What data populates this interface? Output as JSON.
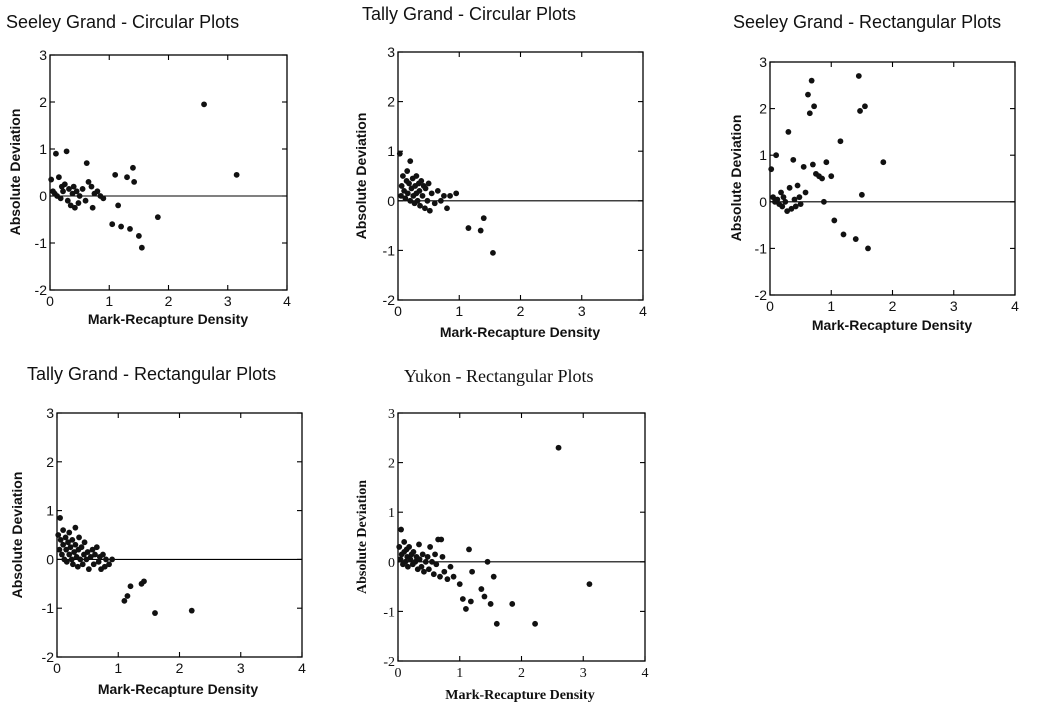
{
  "chart_data": [
    {
      "type": "scatter",
      "title": "Seeley Grand - Circular Plots",
      "xlabel": "Mark-Recapture Density",
      "ylabel": "Absolute Deviation",
      "xlim": [
        0,
        4
      ],
      "ylim": [
        -2,
        3
      ],
      "xticks": [
        "0",
        "1",
        "2",
        "3",
        "4"
      ],
      "yticks": [
        "-2",
        "-1",
        "0",
        "1",
        "2",
        "3"
      ],
      "reference_line_y": 0,
      "points": [
        [
          0.02,
          0.35
        ],
        [
          0.05,
          0.1
        ],
        [
          0.08,
          0.05
        ],
        [
          0.1,
          0.9
        ],
        [
          0.12,
          0.0
        ],
        [
          0.15,
          0.4
        ],
        [
          0.18,
          -0.05
        ],
        [
          0.2,
          0.2
        ],
        [
          0.22,
          0.1
        ],
        [
          0.25,
          0.25
        ],
        [
          0.28,
          0.95
        ],
        [
          0.3,
          -0.1
        ],
        [
          0.32,
          0.15
        ],
        [
          0.35,
          -0.2
        ],
        [
          0.38,
          0.05
        ],
        [
          0.4,
          0.2
        ],
        [
          0.42,
          -0.25
        ],
        [
          0.45,
          0.1
        ],
        [
          0.48,
          -0.15
        ],
        [
          0.5,
          0.0
        ],
        [
          0.55,
          0.15
        ],
        [
          0.6,
          -0.1
        ],
        [
          0.62,
          0.7
        ],
        [
          0.65,
          0.3
        ],
        [
          0.7,
          0.2
        ],
        [
          0.72,
          -0.25
        ],
        [
          0.75,
          0.05
        ],
        [
          0.8,
          0.1
        ],
        [
          0.85,
          0.0
        ],
        [
          0.9,
          -0.05
        ],
        [
          1.05,
          -0.6
        ],
        [
          1.1,
          0.45
        ],
        [
          1.15,
          -0.2
        ],
        [
          1.2,
          -0.65
        ],
        [
          1.3,
          0.4
        ],
        [
          1.35,
          -0.7
        ],
        [
          1.4,
          0.6
        ],
        [
          1.42,
          0.3
        ],
        [
          1.5,
          -0.85
        ],
        [
          1.55,
          -1.1
        ],
        [
          1.82,
          -0.45
        ],
        [
          2.6,
          1.95
        ],
        [
          3.15,
          0.45
        ]
      ]
    },
    {
      "type": "scatter",
      "title": "Tally Grand - Circular Plots",
      "xlabel": "Mark-Recapture Density",
      "ylabel": "Absolute Deviation",
      "xlim": [
        0,
        4
      ],
      "ylim": [
        -2,
        3
      ],
      "xticks": [
        "0",
        "1",
        "2",
        "3",
        "4"
      ],
      "yticks": [
        "-2",
        "-1",
        "0",
        "1",
        "2",
        "3"
      ],
      "reference_line_y": 0,
      "points": [
        [
          0.03,
          0.95
        ],
        [
          0.05,
          0.1
        ],
        [
          0.06,
          0.3
        ],
        [
          0.08,
          0.5
        ],
        [
          0.1,
          0.2
        ],
        [
          0.12,
          0.05
        ],
        [
          0.14,
          0.4
        ],
        [
          0.15,
          0.6
        ],
        [
          0.16,
          0.15
        ],
        [
          0.18,
          0.35
        ],
        [
          0.2,
          0.0
        ],
        [
          0.2,
          0.8
        ],
        [
          0.22,
          0.25
        ],
        [
          0.24,
          0.45
        ],
        [
          0.25,
          0.1
        ],
        [
          0.27,
          -0.05
        ],
        [
          0.28,
          0.3
        ],
        [
          0.3,
          0.15
        ],
        [
          0.3,
          0.5
        ],
        [
          0.32,
          0.0
        ],
        [
          0.34,
          0.35
        ],
        [
          0.35,
          0.2
        ],
        [
          0.36,
          -0.1
        ],
        [
          0.38,
          0.4
        ],
        [
          0.4,
          0.1
        ],
        [
          0.42,
          0.3
        ],
        [
          0.44,
          -0.15
        ],
        [
          0.45,
          0.25
        ],
        [
          0.48,
          0.0
        ],
        [
          0.5,
          0.35
        ],
        [
          0.52,
          -0.2
        ],
        [
          0.55,
          0.15
        ],
        [
          0.6,
          -0.05
        ],
        [
          0.65,
          0.2
        ],
        [
          0.7,
          0.0
        ],
        [
          0.75,
          0.1
        ],
        [
          0.8,
          -0.15
        ],
        [
          0.85,
          0.1
        ],
        [
          0.95,
          0.15
        ],
        [
          1.15,
          -0.55
        ],
        [
          1.35,
          -0.6
        ],
        [
          1.4,
          -0.35
        ],
        [
          1.55,
          -1.05
        ]
      ]
    },
    {
      "type": "scatter",
      "title": "Seeley Grand - Rectangular Plots",
      "xlabel": "Mark-Recapture Density",
      "ylabel": "Absolute Deviation",
      "xlim": [
        0,
        4
      ],
      "ylim": [
        -2,
        3
      ],
      "xticks": [
        "0",
        "1",
        "2",
        "3",
        "4"
      ],
      "yticks": [
        "-2",
        "-1",
        "0",
        "1",
        "2",
        "3"
      ],
      "reference_line_y": 0,
      "points": [
        [
          0.02,
          0.7
        ],
        [
          0.05,
          0.1
        ],
        [
          0.08,
          0.0
        ],
        [
          0.1,
          1.0
        ],
        [
          0.12,
          0.05
        ],
        [
          0.15,
          -0.05
        ],
        [
          0.18,
          0.2
        ],
        [
          0.2,
          -0.1
        ],
        [
          0.22,
          0.1
        ],
        [
          0.25,
          0.0
        ],
        [
          0.28,
          -0.2
        ],
        [
          0.3,
          1.5
        ],
        [
          0.32,
          0.3
        ],
        [
          0.35,
          -0.15
        ],
        [
          0.38,
          0.9
        ],
        [
          0.4,
          0.05
        ],
        [
          0.42,
          -0.1
        ],
        [
          0.45,
          0.35
        ],
        [
          0.48,
          0.1
        ],
        [
          0.5,
          -0.05
        ],
        [
          0.55,
          0.75
        ],
        [
          0.58,
          0.2
        ],
        [
          0.62,
          2.3
        ],
        [
          0.65,
          1.9
        ],
        [
          0.68,
          2.6
        ],
        [
          0.7,
          0.8
        ],
        [
          0.72,
          2.05
        ],
        [
          0.75,
          0.6
        ],
        [
          0.8,
          0.55
        ],
        [
          0.85,
          0.5
        ],
        [
          0.88,
          0.0
        ],
        [
          0.92,
          0.85
        ],
        [
          1.0,
          0.55
        ],
        [
          1.05,
          -0.4
        ],
        [
          1.15,
          1.3
        ],
        [
          1.2,
          -0.7
        ],
        [
          1.4,
          -0.8
        ],
        [
          1.45,
          2.7
        ],
        [
          1.47,
          1.95
        ],
        [
          1.5,
          0.15
        ],
        [
          1.55,
          2.05
        ],
        [
          1.6,
          -1.0
        ],
        [
          1.85,
          0.85
        ]
      ]
    },
    {
      "type": "scatter",
      "title": "Tally Grand - Rectangular Plots",
      "xlabel": "Mark-Recapture Density",
      "ylabel": "Absolute Deviation",
      "xlim": [
        0,
        4
      ],
      "ylim": [
        -2,
        3
      ],
      "xticks": [
        "0",
        "1",
        "2",
        "3",
        "4"
      ],
      "yticks": [
        "-2",
        "-1",
        "0",
        "1",
        "2",
        "3"
      ],
      "reference_line_y": 0,
      "points": [
        [
          0.02,
          0.5
        ],
        [
          0.04,
          0.2
        ],
        [
          0.05,
          0.85
        ],
        [
          0.06,
          0.4
        ],
        [
          0.08,
          0.1
        ],
        [
          0.1,
          0.3
        ],
        [
          0.1,
          0.6
        ],
        [
          0.12,
          0.0
        ],
        [
          0.14,
          0.45
        ],
        [
          0.15,
          0.2
        ],
        [
          0.16,
          -0.05
        ],
        [
          0.18,
          0.35
        ],
        [
          0.2,
          0.1
        ],
        [
          0.2,
          0.55
        ],
        [
          0.22,
          0.25
        ],
        [
          0.24,
          0.0
        ],
        [
          0.25,
          0.4
        ],
        [
          0.26,
          -0.1
        ],
        [
          0.28,
          0.15
        ],
        [
          0.3,
          0.3
        ],
        [
          0.3,
          0.65
        ],
        [
          0.32,
          0.05
        ],
        [
          0.34,
          -0.15
        ],
        [
          0.35,
          0.2
        ],
        [
          0.36,
          0.45
        ],
        [
          0.38,
          0.0
        ],
        [
          0.4,
          0.25
        ],
        [
          0.42,
          -0.1
        ],
        [
          0.44,
          0.1
        ],
        [
          0.45,
          0.35
        ],
        [
          0.48,
          0.0
        ],
        [
          0.5,
          0.15
        ],
        [
          0.52,
          -0.2
        ],
        [
          0.55,
          0.05
        ],
        [
          0.58,
          0.2
        ],
        [
          0.6,
          -0.1
        ],
        [
          0.62,
          0.1
        ],
        [
          0.65,
          0.25
        ],
        [
          0.68,
          -0.05
        ],
        [
          0.7,
          0.05
        ],
        [
          0.72,
          -0.2
        ],
        [
          0.75,
          0.1
        ],
        [
          0.78,
          -0.15
        ],
        [
          0.8,
          0.0
        ],
        [
          0.85,
          -0.1
        ],
        [
          0.9,
          0.0
        ],
        [
          1.1,
          -0.85
        ],
        [
          1.15,
          -0.75
        ],
        [
          1.2,
          -0.55
        ],
        [
          1.38,
          -0.5
        ],
        [
          1.42,
          -0.45
        ],
        [
          1.6,
          -1.1
        ],
        [
          2.2,
          -1.05
        ]
      ]
    },
    {
      "type": "scatter",
      "title": "Yukon - Rectangular Plots",
      "xlabel": "Mark-Recapture Density",
      "ylabel": "Absolute Deviation",
      "xlim": [
        0,
        4
      ],
      "ylim": [
        -2,
        3
      ],
      "xticks": [
        "0",
        "1",
        "2",
        "3",
        "4"
      ],
      "yticks": [
        "-2",
        "-1",
        "0",
        "1",
        "2",
        "3"
      ],
      "reference_line_y": 0,
      "points": [
        [
          0.02,
          0.3
        ],
        [
          0.04,
          0.05
        ],
        [
          0.05,
          0.65
        ],
        [
          0.06,
          0.15
        ],
        [
          0.08,
          -0.05
        ],
        [
          0.1,
          0.2
        ],
        [
          0.1,
          0.4
        ],
        [
          0.12,
          0.0
        ],
        [
          0.14,
          0.25
        ],
        [
          0.15,
          0.1
        ],
        [
          0.16,
          -0.1
        ],
        [
          0.18,
          0.3
        ],
        [
          0.2,
          0.05
        ],
        [
          0.22,
          0.15
        ],
        [
          0.24,
          -0.05
        ],
        [
          0.25,
          0.2
        ],
        [
          0.28,
          0.0
        ],
        [
          0.3,
          0.1
        ],
        [
          0.32,
          -0.15
        ],
        [
          0.34,
          0.35
        ],
        [
          0.35,
          0.05
        ],
        [
          0.38,
          -0.1
        ],
        [
          0.4,
          0.15
        ],
        [
          0.42,
          -0.2
        ],
        [
          0.45,
          0.0
        ],
        [
          0.48,
          0.1
        ],
        [
          0.5,
          -0.15
        ],
        [
          0.52,
          0.3
        ],
        [
          0.55,
          0.0
        ],
        [
          0.58,
          -0.25
        ],
        [
          0.6,
          0.15
        ],
        [
          0.62,
          -0.05
        ],
        [
          0.65,
          0.45
        ],
        [
          0.68,
          -0.3
        ],
        [
          0.7,
          0.45
        ],
        [
          0.72,
          0.1
        ],
        [
          0.75,
          -0.2
        ],
        [
          0.8,
          -0.35
        ],
        [
          0.85,
          -0.1
        ],
        [
          0.9,
          -0.3
        ],
        [
          1.0,
          -0.45
        ],
        [
          1.05,
          -0.75
        ],
        [
          1.1,
          -0.95
        ],
        [
          1.15,
          0.25
        ],
        [
          1.18,
          -0.8
        ],
        [
          1.2,
          -0.2
        ],
        [
          1.35,
          -0.55
        ],
        [
          1.4,
          -0.7
        ],
        [
          1.45,
          0.0
        ],
        [
          1.5,
          -0.85
        ],
        [
          1.55,
          -0.3
        ],
        [
          1.6,
          -1.25
        ],
        [
          1.85,
          -0.85
        ],
        [
          2.22,
          -1.25
        ],
        [
          2.6,
          2.3
        ],
        [
          3.1,
          -0.45
        ]
      ]
    }
  ]
}
